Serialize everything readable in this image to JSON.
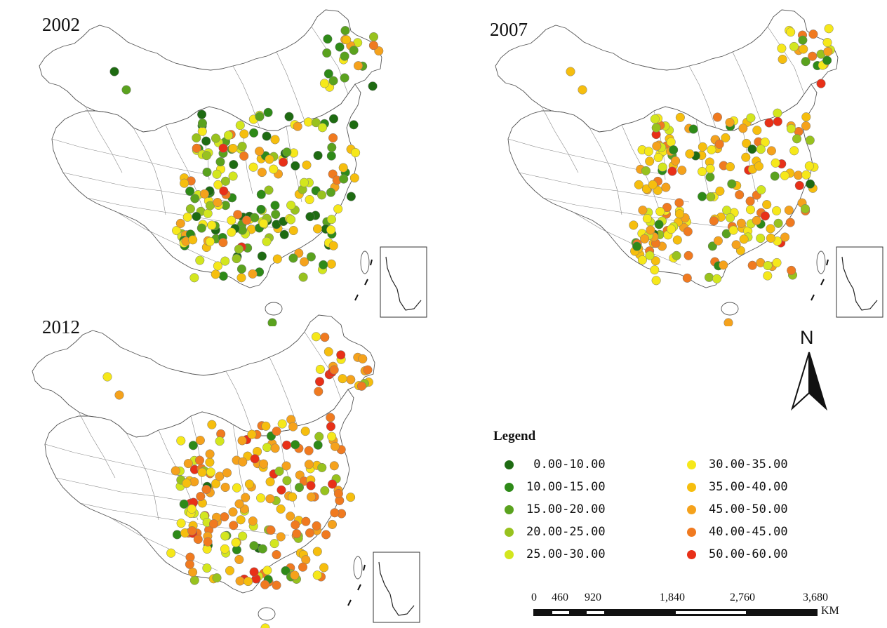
{
  "maps": [
    {
      "year": "2002"
    },
    {
      "year": "2007"
    },
    {
      "year": "2012"
    }
  ],
  "north_label": "N",
  "legend": {
    "title": "Legend",
    "classes": [
      {
        "label": " 0.00-10.00",
        "color": "#1e6b12"
      },
      {
        "label": "10.00-15.00",
        "color": "#2e8a18"
      },
      {
        "label": "15.00-20.00",
        "color": "#5aa21e"
      },
      {
        "label": "20.00-25.00",
        "color": "#98c21e"
      },
      {
        "label": "25.00-30.00",
        "color": "#d3e61e"
      },
      {
        "label": "30.00-35.00",
        "color": "#f6e81a"
      },
      {
        "label": "35.00-40.00",
        "color": "#f6be0e"
      },
      {
        "label": "45.00-50.00",
        "color": "#f5a21c"
      },
      {
        "label": "40.00-45.00",
        "color": "#f07a20"
      },
      {
        "label": "50.00-60.00",
        "color": "#e83018"
      }
    ]
  },
  "scale_bar": {
    "labels": [
      "0",
      "460",
      "920",
      "1,840",
      "2,760",
      "3,680"
    ],
    "unit": "KM"
  }
}
